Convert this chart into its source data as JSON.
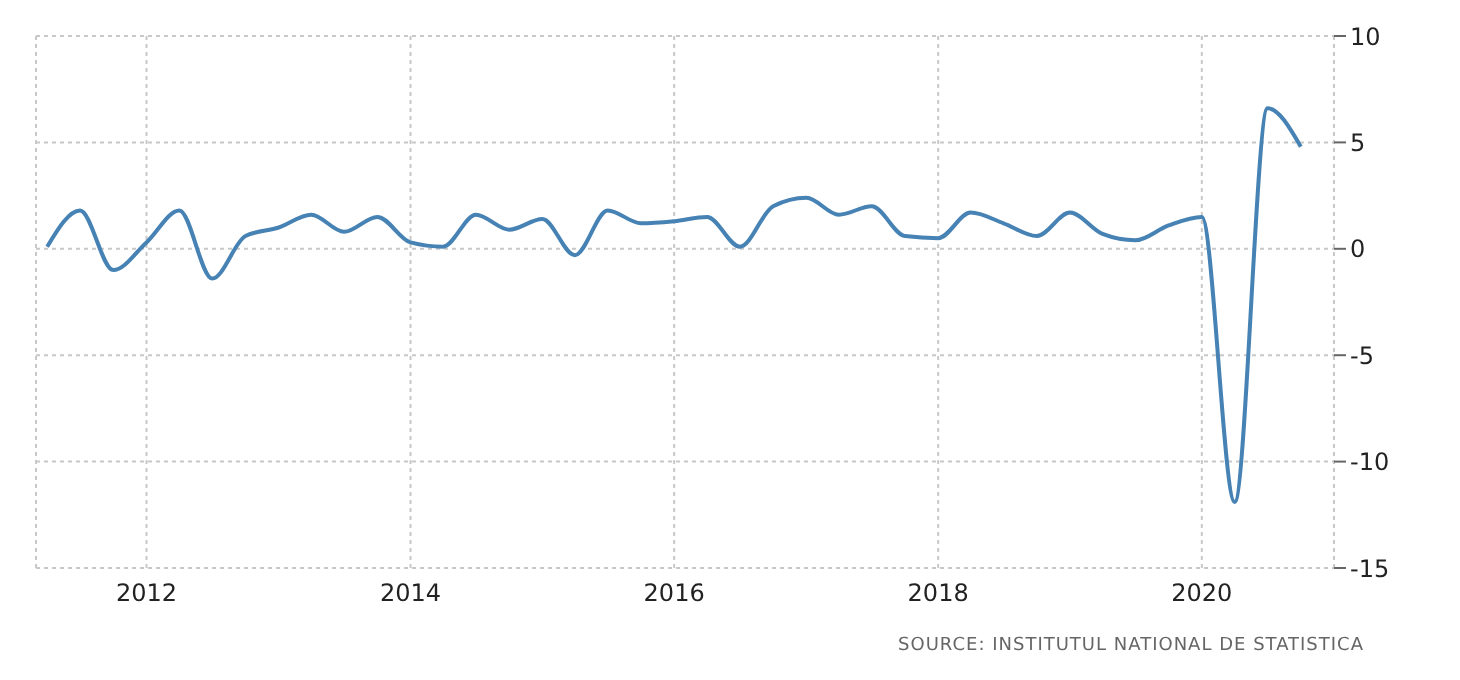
{
  "chart_data": {
    "type": "line",
    "x": [
      "2011-04",
      "2011-07",
      "2011-10",
      "2012-01",
      "2012-04",
      "2012-07",
      "2012-10",
      "2013-01",
      "2013-04",
      "2013-07",
      "2013-10",
      "2014-01",
      "2014-04",
      "2014-07",
      "2014-10",
      "2015-01",
      "2015-04",
      "2015-07",
      "2015-10",
      "2016-01",
      "2016-04",
      "2016-07",
      "2016-10",
      "2017-01",
      "2017-04",
      "2017-07",
      "2017-10",
      "2018-01",
      "2018-04",
      "2018-07",
      "2018-10",
      "2019-01",
      "2019-04",
      "2019-07",
      "2019-10",
      "2020-01",
      "2020-04",
      "2020-07",
      "2020-10"
    ],
    "series": [
      {
        "color": "#4682b4",
        "values": [
          0.1,
          1.8,
          -1.0,
          0.3,
          1.8,
          -1.4,
          0.6,
          1.0,
          1.6,
          0.8,
          1.5,
          0.3,
          0.1,
          1.6,
          0.9,
          1.4,
          -0.3,
          1.8,
          1.2,
          1.3,
          1.5,
          0.1,
          2.0,
          2.4,
          1.6,
          2.0,
          0.6,
          0.5,
          1.7,
          1.2,
          0.6,
          1.7,
          0.7,
          0.4,
          1.1,
          1.5,
          -11.9,
          6.6,
          4.8
        ]
      }
    ],
    "xlim": [
      "2011-03",
      "2021-01"
    ],
    "xticks": [
      "2012",
      "2014",
      "2016",
      "2018",
      "2020"
    ],
    "ylim": [
      -15,
      10
    ],
    "yticks": [
      -15,
      -10,
      -5,
      0,
      5,
      10
    ],
    "grid": true,
    "legend": false,
    "marker": "none",
    "line_style": "solid",
    "annotations": [
      "SOURCE: INSTITUTUL NATIONAL DE STATISTICA"
    ]
  }
}
